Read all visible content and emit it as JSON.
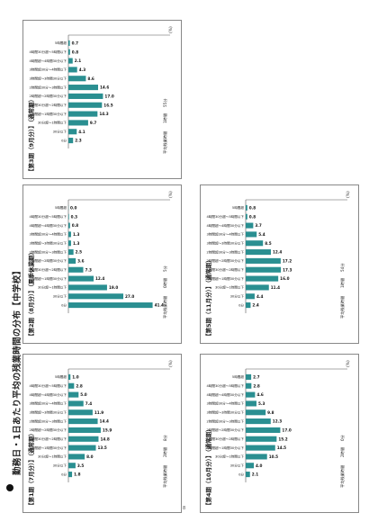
{
  "page": {
    "title": "勤務日・1日あたり平均の残業時間の分布【中学校】",
    "page_number": "8"
  },
  "chart_data": [
    {
      "type": "bar",
      "panel_title": "【第1期（7月分）】（通常期）",
      "categories": [
        "0分",
        "30分以下",
        "30分超～1時間以下",
        "1時間超～1時間30分以下",
        "1時間30分超～2時間以下",
        "2時間超～2時間30分以下",
        "2時間超30分～3時間以下",
        "3時間超～3時間30分以下",
        "3時間超30分～4時間以下",
        "4時間超～4時間30分以下",
        "4時間30分超～5時間以下",
        "5時間超"
      ],
      "values": [
        1.8,
        3.5,
        8.0,
        13.5,
        14.8,
        15.9,
        14.4,
        11.9,
        7.4,
        5.0,
        2.8,
        1.0
      ],
      "value_labels": [
        "1.8",
        "3.5",
        "8.0",
        "13.5",
        "14.8",
        "15.9",
        "14.4",
        "11.9",
        "7.4",
        "5.0",
        "2.8",
        "1.0"
      ],
      "ylim": [
        0,
        50
      ],
      "y_unit": "(%)",
      "footer": [
        "平均残業時間",
        "2時間",
        "8分"
      ]
    },
    {
      "type": "bar",
      "panel_title": "【第2期（8月分）】（夏季休業期）",
      "categories": [
        "0分",
        "30分以下",
        "30分超～1時間以下",
        "1時間超～1時間30分以下",
        "1時間30分超～2時間以下",
        "2時間超～2時間30分以下",
        "2時間超30分～3時間以下",
        "3時間超～3時間30分以下",
        "3時間超30分～4時間以下",
        "4時間超～4時間30分以下",
        "4時間30分超～5時間以下",
        "5時間超"
      ],
      "values": [
        41.4,
        27.0,
        19.0,
        12.4,
        7.3,
        3.6,
        2.5,
        1.3,
        1.3,
        0.8,
        0.3,
        0.0
      ],
      "value_labels": [
        "41.4",
        "27.0",
        "19.0",
        "12.4",
        "7.3",
        "3.6",
        "2.5",
        "1.3",
        "1.3",
        "0.8",
        "0.3",
        "0.0"
      ],
      "ylim": [
        0,
        50
      ],
      "y_unit": "(%)",
      "footer": [
        "平均残業時間",
        "0時間",
        "5分"
      ]
    },
    {
      "type": "bar",
      "panel_title": "【第3期（9月分）】（通常期）",
      "categories": [
        "0分",
        "30分以下",
        "30分超～1時間以下",
        "1時間超～1時間30分以下",
        "1時間30分超～2時間以下",
        "2時間超～2時間30分以下",
        "2時間超30分～3時間以下",
        "3時間超～3時間30分以下",
        "3時間超30分～4時間以下",
        "4時間超～4時間30分以下",
        "4時間30分超～5時間以下",
        "5時間超"
      ],
      "values": [
        2.3,
        4.1,
        9.7,
        14.3,
        16.5,
        17.0,
        14.6,
        8.6,
        4.3,
        2.1,
        0.8,
        0.7
      ],
      "value_labels": [
        "2.3",
        "4.1",
        "9.7",
        "14.3",
        "16.5",
        "17.0",
        "14.6",
        "8.6",
        "4.3",
        "2.1",
        "0.8",
        "0.7"
      ],
      "ylim": [
        0,
        50
      ],
      "y_unit": "(%)",
      "footer": [
        "平均残業時間",
        "1時間",
        "55分"
      ]
    },
    {
      "type": "bar",
      "panel_title": "【第4期（10月分）】（通常期）",
      "categories": [
        "0分",
        "30分以下",
        "30分超～1時間以下",
        "1時間超～1時間30分以下",
        "1時間30分超～2時間以下",
        "2時間超～2時間30分以下",
        "2時間超30分～3時間以下",
        "3時間超～3時間30分以下",
        "3時間超30分～4時間以下",
        "4時間超～4時間30分以下",
        "4時間30分超～5時間以下",
        "5時間超"
      ],
      "values": [
        2.1,
        4.0,
        10.5,
        14.5,
        15.2,
        17.0,
        12.3,
        9.8,
        5.3,
        4.6,
        2.8,
        2.7
      ],
      "value_labels": [
        "2.1",
        "4.0",
        "10.5",
        "14.5",
        "15.2",
        "17.0",
        "12.3",
        "9.8",
        "5.3",
        "4.6",
        "2.8",
        "2.7"
      ],
      "ylim": [
        0,
        50
      ],
      "y_unit": "(%)",
      "footer": [
        "平均残業時間",
        "2時間",
        "0分"
      ]
    },
    {
      "type": "bar",
      "panel_title": "【第5期（11月分）】（通常期）",
      "categories": [
        "0分",
        "30分以下",
        "30分超～1時間以下",
        "1時間超～1時間30分以下",
        "1時間30分超～2時間以下",
        "2時間超～2時間30分以下",
        "2時間超30分～3時間以下",
        "3時間超～3時間30分以下",
        "3時間超30分～4時間以下",
        "4時間超～4時間30分以下",
        "4時間30分超～5時間以下",
        "5時間超"
      ],
      "values": [
        2.4,
        4.4,
        11.4,
        16.0,
        17.3,
        17.2,
        12.4,
        8.5,
        5.4,
        3.7,
        0.8,
        0.8
      ],
      "value_labels": [
        "2.4",
        "4.4",
        "11.4",
        "16.0",
        "17.3",
        "17.2",
        "12.4",
        "8.5",
        "5.4",
        "3.7",
        "0.8",
        "0.8"
      ],
      "ylim": [
        0,
        50
      ],
      "y_unit": "(%)",
      "footer": [
        "平均残業時間",
        "1時間",
        "54分"
      ]
    }
  ]
}
